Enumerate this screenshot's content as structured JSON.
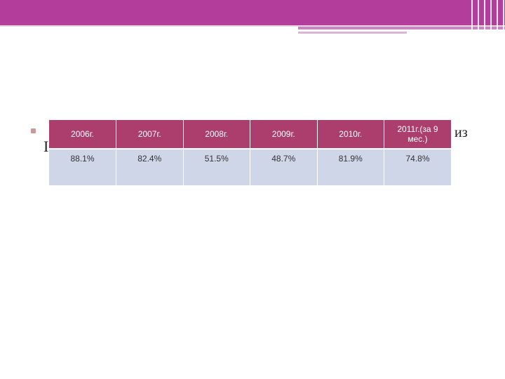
{
  "slide": {
    "clipped_text_left": "I",
    "clipped_text_right": "из"
  },
  "table": {
    "headers": [
      "2006г.",
      "2007г.",
      "2008г.",
      "2009г.",
      "2010г.",
      "2011г.(за 9 мес.)"
    ],
    "values": [
      "88.1%",
      "82.4%",
      "51.5%",
      "48.7%",
      "81.9%",
      "74.8%"
    ]
  },
  "colors": {
    "top_band": "#b33d9a",
    "table_header": "#ab3e6d",
    "table_body": "#cfd6e8"
  }
}
